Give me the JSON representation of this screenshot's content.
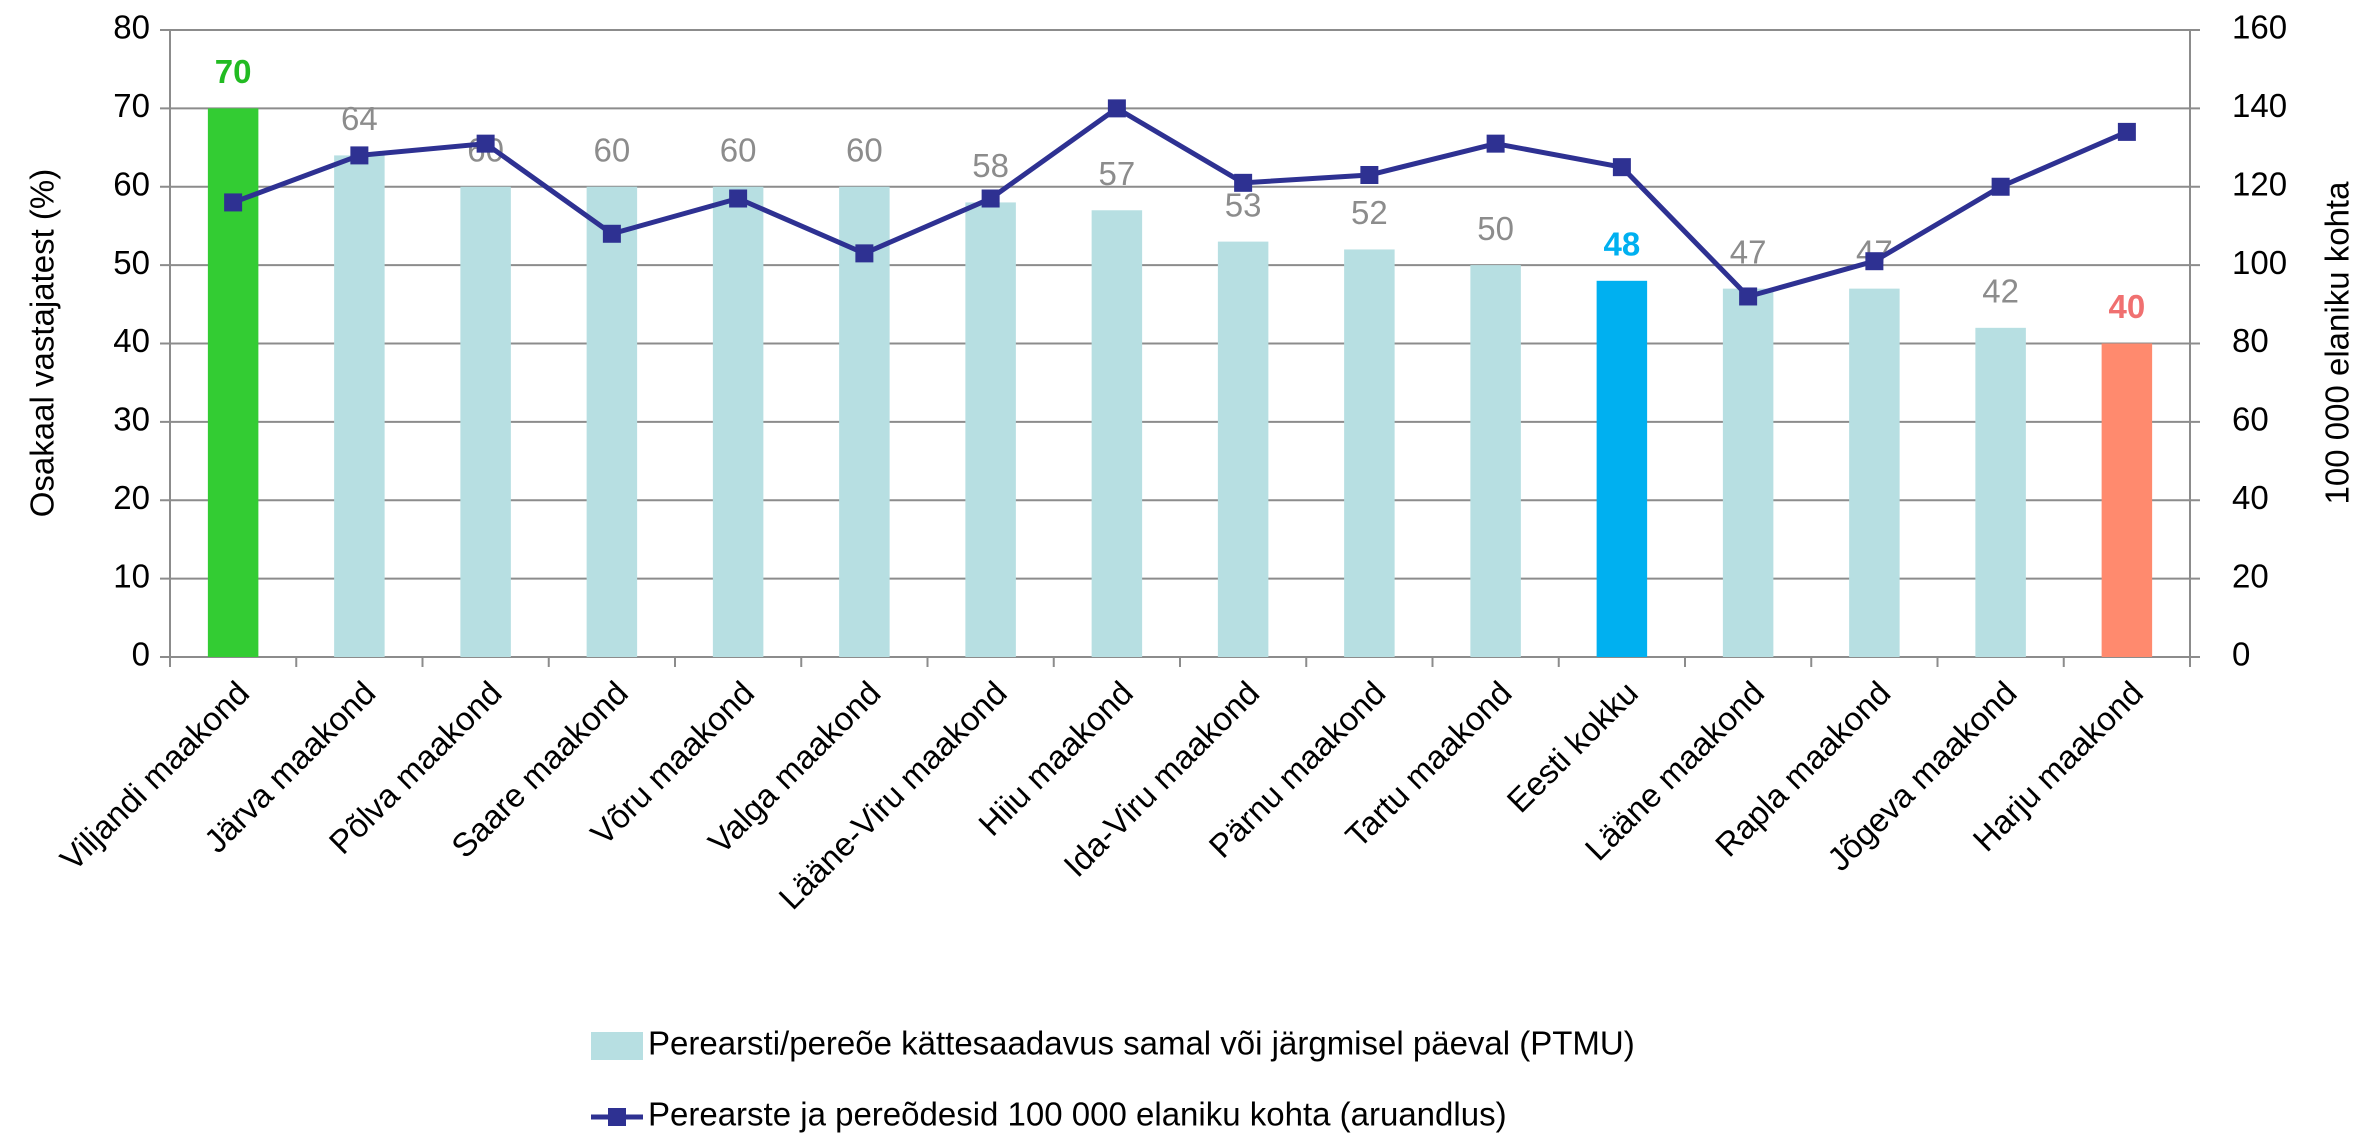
{
  "chart_data": {
    "type": "bar",
    "categories": [
      "Viljandi maakond",
      "Järva maakond",
      "Põlva maakond",
      "Saare maakond",
      "Võru maakond",
      "Valga maakond",
      "Lääne-Viru maakond",
      "Hiiu maakond",
      "Ida-Viru maakond",
      "Pärnu maakond",
      "Tartu maakond",
      "Eesti kokku",
      "Lääne maakond",
      "Rapla maakond",
      "Jõgeva maakond",
      "Harju maakond"
    ],
    "series": [
      {
        "name": "Perearsti/pereõe kättesaadavus samal või järgmisel päeval (PTMU)",
        "type": "bar",
        "color": "#b7dfe2",
        "colors": [
          "#33cc33",
          "#b7dfe2",
          "#b7dfe2",
          "#b7dfe2",
          "#b7dfe2",
          "#b7dfe2",
          "#b7dfe2",
          "#b7dfe2",
          "#b7dfe2",
          "#b7dfe2",
          "#b7dfe2",
          "#00b0f0",
          "#b7dfe2",
          "#b7dfe2",
          "#b7dfe2",
          "#ff8a6e"
        ],
        "label_colors": [
          "#22bb22",
          "#8c8c8c",
          "#8c8c8c",
          "#8c8c8c",
          "#8c8c8c",
          "#8c8c8c",
          "#8c8c8c",
          "#8c8c8c",
          "#8c8c8c",
          "#8c8c8c",
          "#8c8c8c",
          "#00b0f0",
          "#8c8c8c",
          "#8c8c8c",
          "#8c8c8c",
          "#f07070"
        ],
        "values": [
          70,
          64,
          60,
          60,
          60,
          60,
          58,
          57,
          53,
          52,
          50,
          48,
          47,
          47,
          42,
          40
        ]
      },
      {
        "name": "Perearste ja pereõdesid 100 000 elaniku kohta (aruandlus)",
        "type": "line",
        "axis": "y2",
        "color": "#2e3192",
        "values": [
          116,
          128,
          131,
          108,
          117,
          103,
          117,
          140,
          121,
          123,
          131,
          125,
          92,
          101,
          120,
          134
        ]
      }
    ],
    "ylabel": "Osakaal vastajatest (%)",
    "y2label": "100 000 elaniku kohta",
    "ylim": [
      0,
      80
    ],
    "yticks": [
      0,
      10,
      20,
      30,
      40,
      50,
      60,
      70,
      80
    ],
    "y2lim": [
      0,
      160
    ],
    "y2ticks": [
      0,
      20,
      40,
      60,
      80,
      100,
      120,
      140,
      160
    ],
    "grid": true,
    "legend": "bottom"
  }
}
